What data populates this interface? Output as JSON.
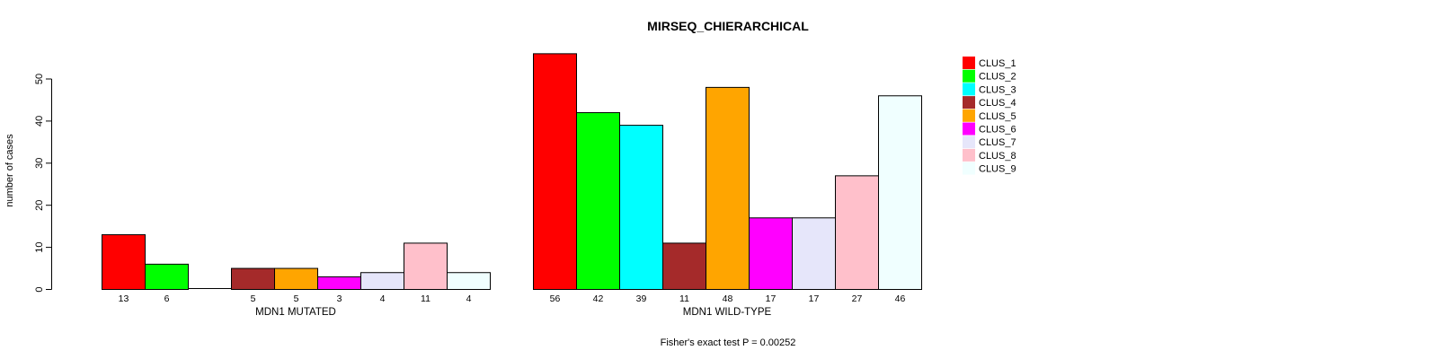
{
  "chart_data": {
    "type": "bar",
    "title": "MIRSEQ_CHIERARCHICAL",
    "ylabel": "number of cases",
    "xlabel": "",
    "ylim": [
      0,
      56
    ],
    "yticks": [
      0,
      10,
      20,
      30,
      40,
      50
    ],
    "grid": false,
    "legend_position": "right",
    "legend_labels": [
      "CLUS_1",
      "CLUS_2",
      "CLUS_3",
      "CLUS_4",
      "CLUS_5",
      "CLUS_6",
      "CLUS_7",
      "CLUS_8",
      "CLUS_9"
    ],
    "series_colors": [
      "#FF0000",
      "#00FF00",
      "#00FFFF",
      "#A52A2A",
      "#FFA500",
      "#FF00FF",
      "#E6E6FA",
      "#FFC0CB",
      "#F0FFFF"
    ],
    "bar_border_color": "#000000",
    "groups": [
      {
        "label": "MDN1 MUTATED",
        "values": [
          13,
          6,
          0,
          5,
          5,
          3,
          4,
          11,
          4
        ]
      },
      {
        "label": "MDN1 WILD-TYPE",
        "values": [
          56,
          42,
          39,
          11,
          48,
          17,
          17,
          27,
          46
        ]
      }
    ],
    "bar_value_labels_shown": true,
    "annotation": "Fisher's exact test P = 0.00252"
  }
}
